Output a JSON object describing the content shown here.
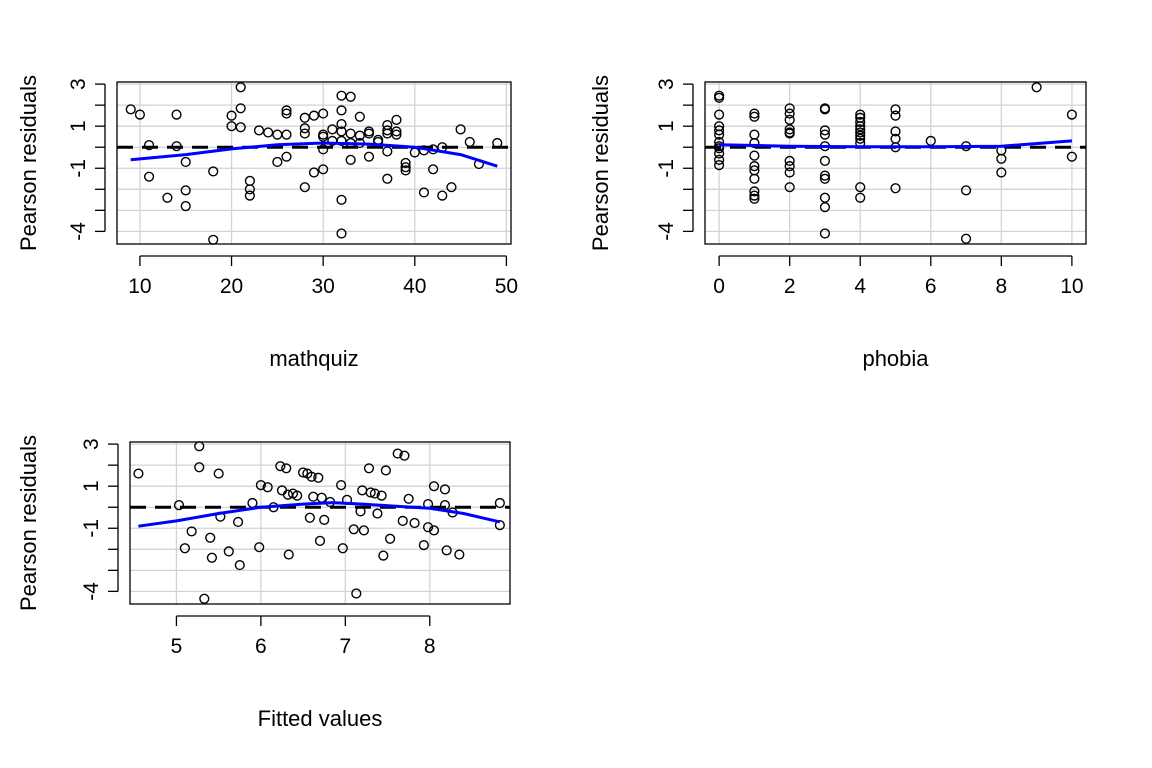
{
  "chart_data": [
    {
      "type": "scatter",
      "xlabel": "mathquiz",
      "ylabel": "Pearson residuals",
      "xlim": [
        7.5,
        50.5
      ],
      "ylim": [
        -4.6,
        3.1
      ],
      "x_ticks": [
        10,
        20,
        30,
        40,
        50
      ],
      "x_tick_labels": [
        "10",
        "20",
        "30",
        "40",
        "50"
      ],
      "y_ticks": [
        -4,
        -3,
        -2,
        -1,
        0,
        1,
        2,
        3
      ],
      "y_tick_labels": [
        "-4",
        "",
        "",
        "-1",
        "",
        "1",
        "",
        "3"
      ],
      "grid": true,
      "reference_line": 0,
      "points": [
        [
          9,
          1.8
        ],
        [
          10,
          1.55
        ],
        [
          11,
          0.1
        ],
        [
          11,
          -1.4
        ],
        [
          13,
          -2.4
        ],
        [
          14,
          1.55
        ],
        [
          14,
          0.05
        ],
        [
          15,
          -0.7
        ],
        [
          15,
          -2.05
        ],
        [
          15,
          -2.8
        ],
        [
          18,
          -1.15
        ],
        [
          18,
          -4.4
        ],
        [
          20,
          1.5
        ],
        [
          20,
          1.0
        ],
        [
          21,
          2.85
        ],
        [
          21,
          1.85
        ],
        [
          21,
          0.95
        ],
        [
          22,
          -1.6
        ],
        [
          22,
          -2.0
        ],
        [
          22,
          -2.3
        ],
        [
          23,
          0.8
        ],
        [
          24,
          0.7
        ],
        [
          25,
          0.6
        ],
        [
          25,
          -0.7
        ],
        [
          26,
          1.75
        ],
        [
          26,
          1.6
        ],
        [
          26,
          0.6
        ],
        [
          26,
          -0.45
        ],
        [
          28,
          1.4
        ],
        [
          28,
          0.9
        ],
        [
          28,
          0.65
        ],
        [
          28,
          -1.9
        ],
        [
          29,
          1.5
        ],
        [
          29,
          -1.2
        ],
        [
          30,
          1.6
        ],
        [
          30,
          0.6
        ],
        [
          30,
          0.5
        ],
        [
          30,
          -0.1
        ],
        [
          30,
          -1.05
        ],
        [
          31,
          0.3
        ],
        [
          31,
          0.85
        ],
        [
          32,
          2.45
        ],
        [
          32,
          1.75
        ],
        [
          32,
          1.1
        ],
        [
          32,
          0.75
        ],
        [
          32,
          0.3
        ],
        [
          32,
          -2.5
        ],
        [
          32,
          -4.1
        ],
        [
          33,
          2.4
        ],
        [
          33,
          0.65
        ],
        [
          33,
          0.2
        ],
        [
          33,
          -0.6
        ],
        [
          34,
          1.45
        ],
        [
          34,
          0.55
        ],
        [
          34,
          0.2
        ],
        [
          35,
          0.75
        ],
        [
          35,
          0.65
        ],
        [
          35,
          -0.45
        ],
        [
          36,
          0.35
        ],
        [
          36,
          0.25
        ],
        [
          37,
          1.05
        ],
        [
          37,
          0.8
        ],
        [
          37,
          0.65
        ],
        [
          37,
          -0.2
        ],
        [
          37,
          -1.5
        ],
        [
          38,
          1.3
        ],
        [
          38,
          0.75
        ],
        [
          38,
          0.6
        ],
        [
          39,
          -0.75
        ],
        [
          39,
          -0.95
        ],
        [
          39,
          -1.1
        ],
        [
          40,
          -0.25
        ],
        [
          41,
          -0.15
        ],
        [
          41,
          -2.15
        ],
        [
          42,
          -0.1
        ],
        [
          42,
          -1.05
        ],
        [
          43,
          0.0
        ],
        [
          43,
          -2.3
        ],
        [
          44,
          -1.9
        ],
        [
          45,
          0.85
        ],
        [
          46,
          0.25
        ],
        [
          47,
          -0.8
        ],
        [
          49,
          0.2
        ]
      ],
      "smooth": [
        [
          9,
          -0.6
        ],
        [
          15,
          -0.35
        ],
        [
          20,
          -0.08
        ],
        [
          25,
          0.12
        ],
        [
          30,
          0.2
        ],
        [
          35,
          0.15
        ],
        [
          40,
          0.0
        ],
        [
          45,
          -0.35
        ],
        [
          49,
          -0.9
        ]
      ]
    },
    {
      "type": "scatter",
      "xlabel": "phobia",
      "ylabel": "Pearson residuals",
      "xlim": [
        -0.4,
        10.4
      ],
      "ylim": [
        -4.6,
        3.1
      ],
      "x_ticks": [
        0,
        2,
        4,
        6,
        8,
        10
      ],
      "x_tick_labels": [
        "0",
        "2",
        "4",
        "6",
        "8",
        "10"
      ],
      "y_ticks": [
        -4,
        -3,
        -2,
        -1,
        0,
        1,
        2,
        3
      ],
      "y_tick_labels": [
        "-4",
        "",
        "",
        "-1",
        "",
        "1",
        "",
        "3"
      ],
      "grid": true,
      "reference_line": 0,
      "points": [
        [
          0,
          2.45
        ],
        [
          0,
          2.35
        ],
        [
          0,
          1.55
        ],
        [
          0,
          1.0
        ],
        [
          0,
          0.8
        ],
        [
          0,
          0.6
        ],
        [
          0,
          0.25
        ],
        [
          0,
          0.05
        ],
        [
          0,
          -0.05
        ],
        [
          0,
          -0.3
        ],
        [
          0,
          -0.6
        ],
        [
          0,
          -0.85
        ],
        [
          1,
          1.6
        ],
        [
          1,
          1.45
        ],
        [
          1,
          0.6
        ],
        [
          1,
          0.2
        ],
        [
          1,
          -0.4
        ],
        [
          1,
          -0.9
        ],
        [
          1,
          -1.1
        ],
        [
          1,
          -1.5
        ],
        [
          1,
          -2.1
        ],
        [
          1,
          -2.3
        ],
        [
          1,
          -2.45
        ],
        [
          2,
          1.85
        ],
        [
          2,
          1.6
        ],
        [
          2,
          1.3
        ],
        [
          2,
          0.85
        ],
        [
          2,
          0.7
        ],
        [
          2,
          0.65
        ],
        [
          2,
          -0.65
        ],
        [
          2,
          -0.9
        ],
        [
          2,
          -1.2
        ],
        [
          2,
          -1.9
        ],
        [
          3,
          1.85
        ],
        [
          3,
          1.8
        ],
        [
          3,
          0.8
        ],
        [
          3,
          0.6
        ],
        [
          3,
          0.05
        ],
        [
          3,
          -0.65
        ],
        [
          3,
          -1.35
        ],
        [
          3,
          -1.5
        ],
        [
          3,
          -2.4
        ],
        [
          3,
          -2.85
        ],
        [
          3,
          -4.1
        ],
        [
          4,
          1.55
        ],
        [
          4,
          1.4
        ],
        [
          4,
          1.2
        ],
        [
          4,
          1.0
        ],
        [
          4,
          0.85
        ],
        [
          4,
          0.7
        ],
        [
          4,
          0.55
        ],
        [
          4,
          0.4
        ],
        [
          4,
          0.2
        ],
        [
          4,
          -1.9
        ],
        [
          4,
          -2.4
        ],
        [
          5,
          1.8
        ],
        [
          5,
          1.5
        ],
        [
          5,
          0.75
        ],
        [
          5,
          0.4
        ],
        [
          5,
          0.0
        ],
        [
          5,
          -1.95
        ],
        [
          6,
          0.3
        ],
        [
          7,
          0.05
        ],
        [
          7,
          -2.05
        ],
        [
          7,
          -4.35
        ],
        [
          8,
          -0.15
        ],
        [
          8,
          -0.55
        ],
        [
          8,
          -1.2
        ],
        [
          9,
          2.85
        ],
        [
          10,
          1.55
        ],
        [
          10,
          -0.45
        ]
      ],
      "smooth": [
        [
          0,
          0.12
        ],
        [
          2,
          0.05
        ],
        [
          4,
          0.02
        ],
        [
          6,
          0.02
        ],
        [
          8,
          0.05
        ],
        [
          10,
          0.3
        ]
      ]
    },
    {
      "type": "scatter",
      "xlabel": "Fitted values",
      "ylabel": "Pearson residuals",
      "xlim": [
        4.45,
        8.95
      ],
      "ylim": [
        -4.6,
        3.1
      ],
      "x_ticks": [
        5,
        6,
        7,
        8
      ],
      "x_tick_labels": [
        "5",
        "6",
        "7",
        "8"
      ],
      "y_ticks": [
        -4,
        -3,
        -2,
        -1,
        0,
        1,
        2,
        3
      ],
      "y_tick_labels": [
        "-4",
        "",
        "",
        "-1",
        "",
        "1",
        "",
        "3"
      ],
      "grid": true,
      "reference_line": 0,
      "points": [
        [
          4.55,
          1.6
        ],
        [
          5.03,
          0.1
        ],
        [
          5.1,
          -1.95
        ],
        [
          5.18,
          -1.15
        ],
        [
          5.27,
          2.9
        ],
        [
          5.27,
          1.9
        ],
        [
          5.33,
          -4.35
        ],
        [
          5.4,
          -1.45
        ],
        [
          5.42,
          -2.4
        ],
        [
          5.5,
          1.6
        ],
        [
          5.52,
          -0.45
        ],
        [
          5.62,
          -2.1
        ],
        [
          5.73,
          -0.7
        ],
        [
          5.75,
          -2.75
        ],
        [
          5.9,
          0.2
        ],
        [
          5.98,
          -1.9
        ],
        [
          6.0,
          1.05
        ],
        [
          6.08,
          0.95
        ],
        [
          6.15,
          0.0
        ],
        [
          6.23,
          1.95
        ],
        [
          6.25,
          0.8
        ],
        [
          6.3,
          1.85
        ],
        [
          6.32,
          0.6
        ],
        [
          6.33,
          -2.25
        ],
        [
          6.38,
          0.65
        ],
        [
          6.43,
          0.55
        ],
        [
          6.5,
          1.65
        ],
        [
          6.55,
          1.6
        ],
        [
          6.58,
          -0.5
        ],
        [
          6.6,
          1.45
        ],
        [
          6.62,
          0.5
        ],
        [
          6.68,
          1.4
        ],
        [
          6.7,
          -1.6
        ],
        [
          6.72,
          0.45
        ],
        [
          6.75,
          -0.6
        ],
        [
          6.82,
          0.25
        ],
        [
          6.95,
          1.05
        ],
        [
          6.97,
          -1.95
        ],
        [
          7.02,
          0.35
        ],
        [
          7.1,
          -1.05
        ],
        [
          7.13,
          -4.1
        ],
        [
          7.18,
          -0.2
        ],
        [
          7.2,
          0.8
        ],
        [
          7.22,
          -1.1
        ],
        [
          7.28,
          1.85
        ],
        [
          7.3,
          0.7
        ],
        [
          7.35,
          0.65
        ],
        [
          7.38,
          -0.3
        ],
        [
          7.43,
          0.55
        ],
        [
          7.45,
          -2.3
        ],
        [
          7.48,
          1.75
        ],
        [
          7.53,
          -1.5
        ],
        [
          7.62,
          2.55
        ],
        [
          7.68,
          -0.65
        ],
        [
          7.7,
          2.45
        ],
        [
          7.75,
          0.4
        ],
        [
          7.82,
          -0.75
        ],
        [
          7.93,
          -1.8
        ],
        [
          7.98,
          0.15
        ],
        [
          7.98,
          -0.95
        ],
        [
          8.05,
          1.0
        ],
        [
          8.05,
          -1.1
        ],
        [
          8.18,
          0.85
        ],
        [
          8.18,
          0.1
        ],
        [
          8.2,
          -2.05
        ],
        [
          8.27,
          -0.25
        ],
        [
          8.35,
          -2.25
        ],
        [
          8.83,
          0.2
        ],
        [
          8.83,
          -0.85
        ]
      ],
      "smooth": [
        [
          4.55,
          -0.9
        ],
        [
          5.0,
          -0.65
        ],
        [
          5.5,
          -0.3
        ],
        [
          6.0,
          0.0
        ],
        [
          6.5,
          0.15
        ],
        [
          6.85,
          0.22
        ],
        [
          7.2,
          0.15
        ],
        [
          7.6,
          0.05
        ],
        [
          8.0,
          -0.05
        ],
        [
          8.4,
          -0.3
        ],
        [
          8.83,
          -0.7
        ]
      ]
    }
  ]
}
